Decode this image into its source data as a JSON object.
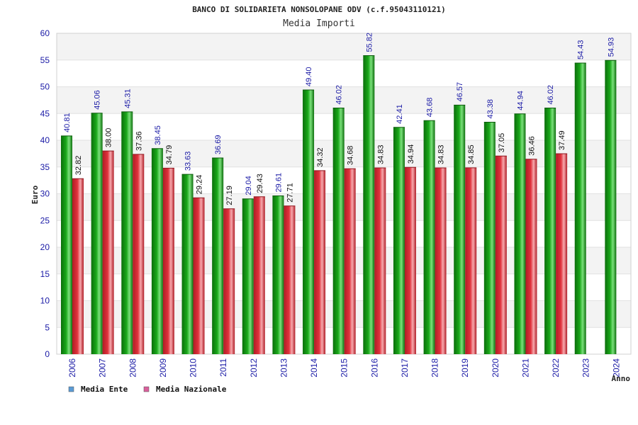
{
  "chart_data": {
    "type": "bar",
    "title": "BANCO DI SOLIDARIETA NONSOLOPANE ODV (c.f.95043110121)",
    "subtitle": "Media Importi",
    "xlabel": "Anno",
    "ylabel": "Euro",
    "ylim": [
      0,
      60
    ],
    "yticks": [
      0,
      5,
      10,
      15,
      20,
      25,
      30,
      35,
      40,
      45,
      50,
      55,
      60
    ],
    "grid": true,
    "legend_position": "bottom-left",
    "categories": [
      "2006",
      "2007",
      "2008",
      "2009",
      "2010",
      "2011",
      "2012",
      "2013",
      "2014",
      "2015",
      "2016",
      "2017",
      "2018",
      "2019",
      "2020",
      "2021",
      "2022",
      "2023",
      "2024"
    ],
    "series": [
      {
        "name": "Media Ente",
        "color": "#1aa81a",
        "legend_color": "#5b9bd5",
        "values": [
          40.81,
          45.06,
          45.31,
          38.45,
          33.63,
          36.69,
          29.04,
          29.61,
          49.4,
          46.02,
          55.82,
          42.41,
          43.68,
          46.57,
          43.38,
          44.94,
          46.02,
          54.43,
          54.93
        ],
        "labels": [
          "40.81",
          "45.06",
          "45.31",
          "38.45",
          "33.63",
          "36.69",
          "29.04",
          "29.61",
          "49.40",
          "46.02",
          "55.82",
          "42.41",
          "43.68",
          "46.57",
          "43.38",
          "44.94",
          "46.02",
          "54.43",
          "54.93"
        ]
      },
      {
        "name": "Media Nazionale",
        "color": "#e0323c",
        "legend_color": "#d9609c",
        "values": [
          32.82,
          38.0,
          37.36,
          34.79,
          29.24,
          27.19,
          29.43,
          27.71,
          34.32,
          34.68,
          34.83,
          34.94,
          34.83,
          34.85,
          37.05,
          36.46,
          37.49,
          null,
          null
        ],
        "labels": [
          "32.82",
          "38.00",
          "37.36",
          "34.79",
          "29.24",
          "27.19",
          "29.43",
          "27.71",
          "34.32",
          "34.68",
          "34.83",
          "34.94",
          "34.83",
          "34.85",
          "37.05",
          "36.46",
          "37.49",
          null,
          null
        ]
      }
    ]
  }
}
